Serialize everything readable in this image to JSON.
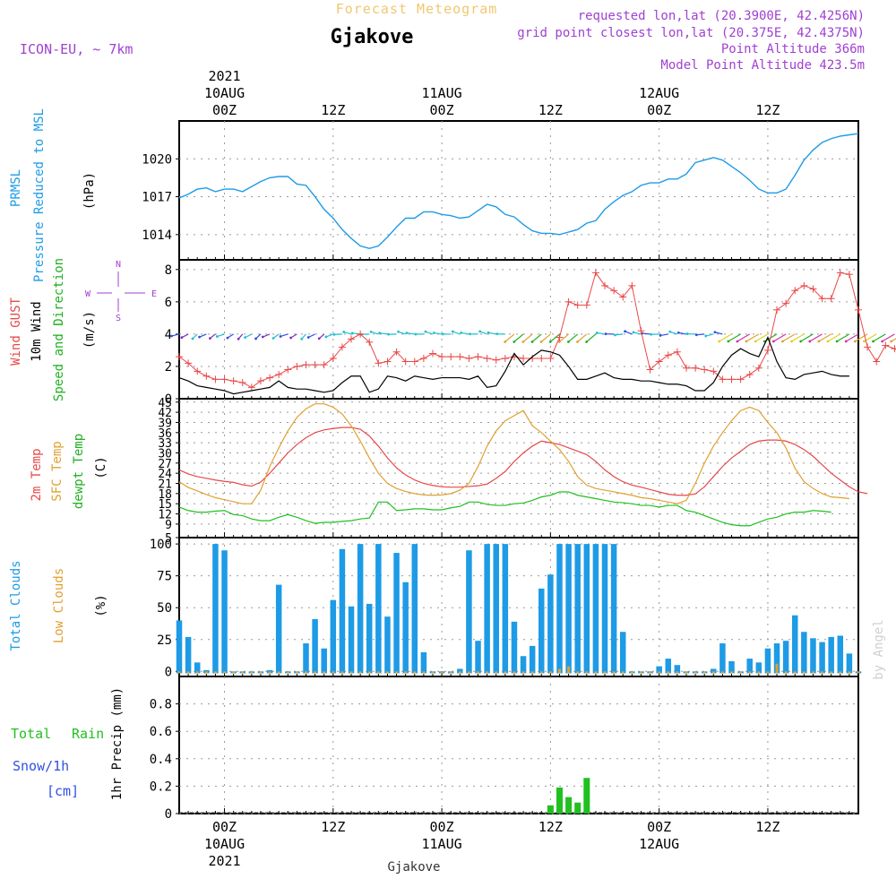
{
  "header": {
    "product": "Forecast Meteogram",
    "location": "Gjakove",
    "model": "ICON-EU, ~ 7km",
    "requested": "requested lon,lat (20.3900E, 42.4256N)",
    "grid_point": "grid point closest lon,lat (20.375E, 42.4375N)",
    "point_altitude": "Point Altitude 366m",
    "model_altitude": "Model Point Altitude 423.5m",
    "footer": "Gjakove",
    "watermark": "by Angel"
  },
  "colors": {
    "pressure": "#1e9be6",
    "gust": "#e84848",
    "wind": "#000000",
    "direction": "#20b020",
    "temp": "#e84848",
    "sfc": "#e0a030",
    "dewpt": "#20c020",
    "total_clouds": "#1e9be6",
    "low_clouds": "#e0a030",
    "rain": "#20c020",
    "snow": "#3050e0",
    "purple": "#a040d0",
    "title_gold": "#f0c870"
  },
  "time_axis": {
    "top_labels": [
      {
        "h": 0,
        "lines": [
          "2021",
          "10AUG",
          "00Z"
        ]
      },
      {
        "h": 12,
        "lines": [
          "12Z"
        ]
      },
      {
        "h": 24,
        "lines": [
          "11AUG",
          "00Z"
        ]
      },
      {
        "h": 36,
        "lines": [
          "12Z"
        ]
      },
      {
        "h": 48,
        "lines": [
          "12AUG",
          "00Z"
        ]
      },
      {
        "h": 60,
        "lines": [
          "12Z"
        ]
      }
    ],
    "bottom_labels": [
      {
        "h": 0,
        "lines": [
          "00Z",
          "10AUG",
          "2021"
        ]
      },
      {
        "h": 12,
        "lines": [
          "12Z"
        ]
      },
      {
        "h": 24,
        "lines": [
          "00Z",
          "11AUG"
        ]
      },
      {
        "h": 36,
        "lines": [
          "12Z"
        ]
      },
      {
        "h": 48,
        "lines": [
          "00Z",
          "12AUG"
        ]
      },
      {
        "h": 60,
        "lines": [
          "12Z"
        ]
      }
    ]
  },
  "panel_labels": {
    "pressure": {
      "title1": "PRMSL",
      "title2": "Pressure Reduced to MSL",
      "unit": "(hPa)"
    },
    "wind": {
      "gust": "Wind GUST",
      "wind": "10m Wind",
      "speed_dir": "Speed and Direction",
      "unit": "(m/s)",
      "compass_n": "N",
      "compass_s": "S",
      "compass_w": "W",
      "compass_e": "E"
    },
    "temp": {
      "temp": "2m Temp",
      "sfc": "SFC Temp",
      "dewpt": "dewpt Temp",
      "unit": "(C)"
    },
    "clouds": {
      "total": "Total Clouds",
      "low": "Low Clouds",
      "unit": "(%)"
    },
    "precip": {
      "rain1": "Total",
      "rain2": "Rain",
      "snow": "Snow/1h",
      "snow_unit": "[cm]",
      "unit": "1hr Precip (mm)"
    }
  },
  "chart_data": [
    {
      "type": "line",
      "name": "pressure",
      "ylabel": "(hPa)",
      "x_start": -5,
      "x_step": 1,
      "ylim": [
        1012,
        1023
      ],
      "yticks": [
        1014,
        1017,
        1020
      ],
      "grid": true,
      "values": [
        1016.9,
        1017.2,
        1017.6,
        1017.7,
        1017.4,
        1017.6,
        1017.6,
        1017.4,
        1017.8,
        1018.2,
        1018.5,
        1018.6,
        1018.6,
        1018.0,
        1017.9,
        1017.0,
        1016.0,
        1015.3,
        1014.4,
        1013.7,
        1013.1,
        1012.9,
        1013.1,
        1013.8,
        1014.6,
        1015.3,
        1015.3,
        1015.8,
        1015.8,
        1015.6,
        1015.5,
        1015.3,
        1015.4,
        1015.9,
        1016.4,
        1016.2,
        1015.6,
        1015.4,
        1014.8,
        1014.3,
        1014.1,
        1014.1,
        1014.0,
        1014.2,
        1014.4,
        1014.9,
        1015.1,
        1016.0,
        1016.6,
        1017.1,
        1017.4,
        1017.9,
        1018.1,
        1018.1,
        1018.4,
        1018.4,
        1018.8,
        1019.7,
        1019.9,
        1020.1,
        1019.9,
        1019.4,
        1018.9,
        1018.3,
        1017.6,
        1017.3,
        1017.3,
        1017.6,
        1018.7,
        1019.9,
        1020.7,
        1021.3,
        1021.6,
        1021.8,
        1021.9,
        1022.0
      ]
    },
    {
      "type": "line",
      "name": "wind",
      "ylabel": "(m/s)",
      "x_start": -5,
      "x_step": 1,
      "ylim": [
        0,
        8.6
      ],
      "yticks": [
        0,
        2,
        4,
        6,
        8
      ],
      "grid": true,
      "series": [
        {
          "name": "Wind GUST",
          "values": [
            2.6,
            2.2,
            1.7,
            1.4,
            1.2,
            1.2,
            1.1,
            1.0,
            0.7,
            1.1,
            1.3,
            1.5,
            1.8,
            2.0,
            2.1,
            2.1,
            2.1,
            2.5,
            3.2,
            3.7,
            4.0,
            3.5,
            2.2,
            2.3,
            2.9,
            2.3,
            2.3,
            2.5,
            2.8,
            2.6,
            2.6,
            2.6,
            2.5,
            2.6,
            2.5,
            2.4,
            2.5,
            2.6,
            2.5,
            2.5,
            2.5,
            2.5,
            3.8,
            6.0,
            5.8,
            5.8,
            7.8,
            7.0,
            6.7,
            6.3,
            7.0,
            4.2,
            1.8,
            2.3,
            2.7,
            2.9,
            1.9,
            1.9,
            1.8,
            1.7,
            1.2,
            1.2,
            1.2,
            1.5,
            1.9,
            3.0,
            5.5,
            5.9,
            6.7,
            7.0,
            6.8,
            6.2,
            6.2,
            7.8,
            7.7,
            5.5,
            3.2,
            2.3,
            3.3,
            3.1,
            2.8
          ]
        },
        {
          "name": "10m Wind",
          "values": [
            1.3,
            1.1,
            0.8,
            0.7,
            0.6,
            0.5,
            0.3,
            0.4,
            0.5,
            0.6,
            0.7,
            1.1,
            0.7,
            0.6,
            0.6,
            0.5,
            0.4,
            0.5,
            1.0,
            1.4,
            1.4,
            0.4,
            0.6,
            1.4,
            1.3,
            1.1,
            1.4,
            1.3,
            1.2,
            1.3,
            1.3,
            1.3,
            1.2,
            1.4,
            0.7,
            0.8,
            1.7,
            2.8,
            2.1,
            2.6,
            3.0,
            2.9,
            2.7,
            2.0,
            1.2,
            1.2,
            1.4,
            1.6,
            1.3,
            1.2,
            1.2,
            1.1,
            1.1,
            1.0,
            0.9,
            0.9,
            0.8,
            0.5,
            0.5,
            1.0,
            2.0,
            2.7,
            3.1,
            2.8,
            2.6,
            3.8,
            2.3,
            1.3,
            1.2,
            1.5,
            1.6,
            1.7,
            1.5,
            1.4,
            1.4
          ]
        }
      ]
    },
    {
      "type": "line",
      "name": "temperature",
      "ylabel": "(C)",
      "x_start": -5,
      "x_step": 1,
      "ylim": [
        5,
        46
      ],
      "yticks": [
        5,
        9,
        12,
        15,
        18,
        21,
        24,
        27,
        30,
        33,
        36,
        39,
        42,
        45
      ],
      "grid": true,
      "series": [
        {
          "name": "2m Temp",
          "values": [
            25.0,
            23.8,
            23.0,
            22.5,
            22.0,
            21.6,
            21.3,
            20.6,
            20.2,
            21.4,
            24.0,
            27.0,
            30.0,
            32.5,
            34.5,
            36.0,
            36.8,
            37.2,
            37.5,
            37.5,
            37.0,
            35.0,
            32.0,
            28.5,
            25.6,
            23.5,
            22.0,
            21.0,
            20.4,
            20.0,
            19.9,
            19.9,
            20.1,
            20.3,
            20.8,
            22.5,
            24.5,
            27.5,
            30.0,
            32.0,
            33.5,
            33.0,
            32.5,
            31.5,
            30.5,
            29.5,
            27.5,
            25.0,
            23.0,
            21.5,
            20.5,
            19.9,
            19.2,
            18.5,
            17.8,
            17.5,
            17.5,
            17.9,
            20.0,
            23.0,
            26.0,
            28.5,
            30.5,
            32.5,
            33.5,
            33.8,
            33.8,
            33.5,
            32.5,
            31.0,
            29.0,
            26.5,
            24.0,
            22.0,
            20.0,
            18.5,
            18.0
          ]
        },
        {
          "name": "SFC Temp",
          "values": [
            21.5,
            19.8,
            18.8,
            17.7,
            16.8,
            16.2,
            15.6,
            15.0,
            15.0,
            19.0,
            26.0,
            31.5,
            36.5,
            40.5,
            43.0,
            44.5,
            44.5,
            43.5,
            41.5,
            38.0,
            33.5,
            28.5,
            24.0,
            21.0,
            19.5,
            18.6,
            18.0,
            17.6,
            17.5,
            17.6,
            18.0,
            19.0,
            21.0,
            26.0,
            32.0,
            36.5,
            39.5,
            41.0,
            42.5,
            38.0,
            36.0,
            33.5,
            31.0,
            27.5,
            23.0,
            20.5,
            19.5,
            19.0,
            18.5,
            18.0,
            17.5,
            16.8,
            16.5,
            16.0,
            15.5,
            15.0,
            16.0,
            21.0,
            27.0,
            32.0,
            36.0,
            39.5,
            42.5,
            43.5,
            42.5,
            39.0,
            36.0,
            31.5,
            25.5,
            21.5,
            19.5,
            18.0,
            17.0,
            16.8,
            16.5
          ]
        },
        {
          "name": "dewpt Temp",
          "values": [
            14.0,
            13.0,
            12.5,
            12.5,
            12.8,
            13.0,
            11.8,
            11.5,
            10.5,
            10.0,
            10.0,
            11.0,
            11.8,
            11.0,
            10.0,
            9.2,
            9.5,
            9.5,
            9.8,
            10.0,
            10.5,
            10.8,
            15.5,
            15.5,
            13.0,
            13.2,
            13.5,
            13.5,
            13.2,
            13.2,
            13.8,
            14.2,
            15.5,
            15.5,
            14.8,
            14.5,
            14.5,
            15.0,
            15.2,
            16.0,
            17.0,
            17.5,
            18.5,
            18.5,
            17.5,
            17.0,
            16.5,
            16.0,
            15.5,
            15.3,
            15.0,
            14.5,
            14.5,
            14.0,
            14.5,
            14.5,
            13.0,
            12.5,
            11.5,
            10.5,
            9.5,
            8.8,
            8.5,
            8.5,
            9.5,
            10.5,
            11.0,
            12.0,
            12.5,
            12.5,
            13.0,
            12.8,
            12.5
          ]
        }
      ]
    },
    {
      "type": "bar",
      "name": "clouds",
      "ylabel": "(%)",
      "x_start": -5,
      "x_step": 1,
      "ylim": [
        -4,
        105
      ],
      "yticks": [
        0,
        25,
        50,
        75,
        100
      ],
      "grid": true,
      "series": [
        {
          "name": "Total Clouds",
          "values": [
            40,
            27,
            7,
            1,
            100,
            95,
            0,
            0,
            0,
            0,
            1,
            68,
            0,
            0,
            22,
            41,
            18,
            56,
            96,
            51,
            100,
            53,
            100,
            43,
            93,
            70,
            100,
            15,
            0,
            0,
            0,
            2,
            95,
            24,
            100,
            100,
            100,
            39,
            12,
            20,
            65,
            76,
            100,
            100,
            100,
            100,
            100,
            100,
            100,
            31,
            0,
            0,
            0,
            4,
            10,
            5,
            0,
            0,
            0,
            2,
            22,
            8,
            0,
            10,
            7,
            18,
            22,
            24,
            44,
            31,
            26,
            23,
            27,
            28,
            14,
            0
          ]
        },
        {
          "name": "Low Clouds",
          "values": [
            0,
            0,
            0,
            0,
            0,
            0,
            0,
            0,
            0,
            0,
            0,
            0,
            0,
            0,
            0,
            0,
            0,
            0,
            0,
            0,
            0,
            0,
            0,
            0,
            0,
            0,
            0,
            0,
            0,
            0,
            0,
            0,
            0,
            0,
            0,
            0,
            0,
            0,
            0,
            0,
            0,
            0,
            2,
            4,
            0,
            0,
            0,
            0,
            0,
            0,
            0,
            0,
            0,
            0,
            0,
            0,
            0,
            0,
            0,
            0,
            0,
            0,
            0,
            0,
            0,
            0,
            6,
            0,
            0,
            0,
            0,
            0,
            0,
            0,
            0,
            0
          ]
        }
      ]
    },
    {
      "type": "bar",
      "name": "precipitation",
      "ylabel": "1hr Precip (mm)",
      "x_start": -5,
      "x_step": 1,
      "ylim": [
        0,
        1
      ],
      "yticks": [
        0,
        0.2,
        0.4,
        0.6,
        0.8
      ],
      "ytick_labels": [
        "0",
        "0.2",
        "0.4",
        "0.6",
        "0.8"
      ],
      "grid": true,
      "series": [
        {
          "name": "Total Rain",
          "points": [
            [
              36,
              0.06
            ],
            [
              37,
              0.19
            ],
            [
              38,
              0.12
            ],
            [
              39,
              0.08
            ],
            [
              40,
              0.26
            ]
          ]
        }
      ]
    }
  ]
}
